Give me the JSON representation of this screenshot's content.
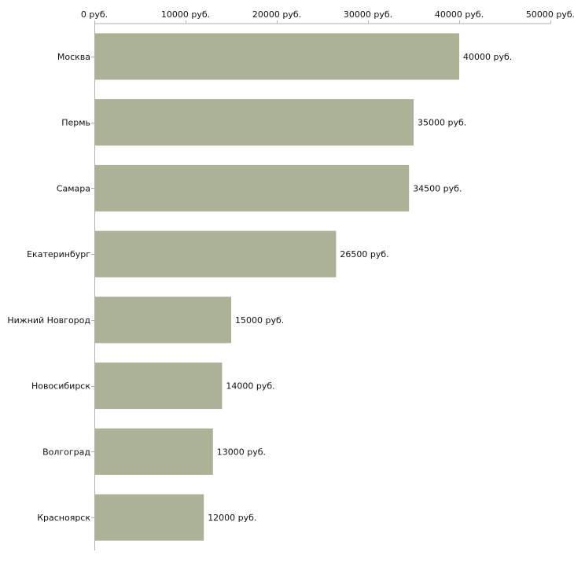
{
  "chart_data": {
    "type": "bar",
    "orientation": "horizontal",
    "categories": [
      "Москва",
      "Пермь",
      "Самара",
      "Екатеринбург",
      "Нижний Новгород",
      "Новосибирск",
      "Волгоград",
      "Красноярск"
    ],
    "values": [
      40000,
      35000,
      34500,
      26500,
      15000,
      14000,
      13000,
      12000
    ],
    "value_labels": [
      "40000 руб.",
      "35000 руб.",
      "34500 руб.",
      "26500 руб.",
      "15000 руб.",
      "14000 руб.",
      "13000 руб.",
      "12000 руб."
    ],
    "x_ticks": [
      0,
      10000,
      20000,
      30000,
      40000,
      50000
    ],
    "x_tick_labels": [
      "0 руб.",
      "10000 руб.",
      "20000 руб.",
      "30000 руб.",
      "40000 руб.",
      "50000 руб."
    ],
    "xlim": [
      0,
      50000
    ],
    "x_axis_position": "top",
    "grid": false,
    "legend": "none",
    "colors": {
      "bar": "#acb295",
      "axis": "#b0b0b0",
      "text": "#111111"
    }
  }
}
